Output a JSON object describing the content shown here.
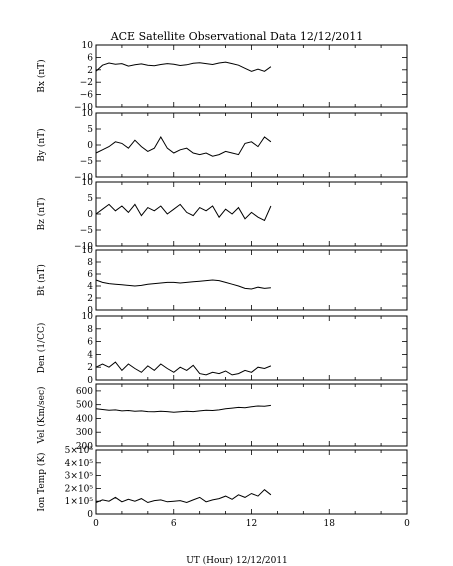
{
  "title": "ACE Satellite Observational Data   12/12/2011",
  "xlabel": "UT (Hour)  12/12/2011",
  "x_ticks": [
    "0",
    "6",
    "12",
    "18",
    "0"
  ],
  "chart_data": [
    {
      "type": "line",
      "ylabel": "Bx (nT)",
      "ylim": [
        -10,
        10
      ],
      "yticks": [
        -10,
        -6,
        -2,
        2,
        6,
        10
      ],
      "ytick_labels": [
        "−10",
        "−6",
        "−2",
        "2",
        "6",
        "10"
      ],
      "x": [
        0,
        0.5,
        1,
        1.5,
        2,
        2.5,
        3,
        3.5,
        4,
        4.5,
        5,
        5.5,
        6,
        6.5,
        7,
        7.5,
        8,
        8.5,
        9,
        9.5,
        10,
        10.5,
        11,
        11.5,
        12,
        12.5,
        13,
        13.5
      ],
      "values": [
        1.5,
        3.5,
        4.2,
        3.8,
        4.0,
        3.2,
        3.6,
        3.9,
        3.5,
        3.3,
        3.7,
        4.0,
        3.8,
        3.4,
        3.6,
        4.1,
        4.3,
        4.0,
        3.7,
        4.2,
        4.5,
        4.0,
        3.5,
        2.5,
        1.5,
        2.2,
        1.5,
        3.0
      ]
    },
    {
      "type": "line",
      "ylabel": "By (nT)",
      "ylim": [
        -10,
        10
      ],
      "yticks": [
        -10,
        -5,
        0,
        5,
        10
      ],
      "ytick_labels": [
        "−10",
        "−5",
        "0",
        "5",
        "10"
      ],
      "x": [
        0,
        0.5,
        1,
        1.5,
        2,
        2.5,
        3,
        3.5,
        4,
        4.5,
        5,
        5.5,
        6,
        6.5,
        7,
        7.5,
        8,
        8.5,
        9,
        9.5,
        10,
        10.5,
        11,
        11.5,
        12,
        12.5,
        13,
        13.5
      ],
      "values": [
        -2.5,
        -1.5,
        -0.5,
        1.0,
        0.5,
        -1.0,
        1.5,
        -0.5,
        -2.0,
        -1.0,
        2.5,
        -1.0,
        -2.5,
        -1.5,
        -1.0,
        -2.5,
        -3.0,
        -2.5,
        -3.5,
        -3.0,
        -2.0,
        -2.5,
        -3.0,
        0.5,
        1.0,
        -0.5,
        2.5,
        1.0
      ]
    },
    {
      "type": "line",
      "ylabel": "Bz (nT)",
      "ylim": [
        -10,
        10
      ],
      "yticks": [
        -10,
        -5,
        0,
        5,
        10
      ],
      "ytick_labels": [
        "−10",
        "−5",
        "0",
        "5",
        "10"
      ],
      "x": [
        0,
        0.5,
        1,
        1.5,
        2,
        2.5,
        3,
        3.5,
        4,
        4.5,
        5,
        5.5,
        6,
        6.5,
        7,
        7.5,
        8,
        8.5,
        9,
        9.5,
        10,
        10.5,
        11,
        11.5,
        12,
        12.5,
        13,
        13.5
      ],
      "values": [
        0.0,
        1.5,
        3.0,
        1.0,
        2.5,
        0.5,
        3.0,
        -0.5,
        2.0,
        1.0,
        2.5,
        0.0,
        1.5,
        3.0,
        0.5,
        -0.5,
        2.0,
        1.0,
        2.5,
        -1.0,
        1.5,
        0.0,
        2.0,
        -1.5,
        0.5,
        -1.0,
        -2.0,
        2.5
      ]
    },
    {
      "type": "line",
      "ylabel": "Bt (nT)",
      "ylim": [
        0,
        10
      ],
      "yticks": [
        0,
        2,
        4,
        6,
        8,
        10
      ],
      "ytick_labels": [
        "0",
        "2",
        "4",
        "6",
        "8",
        "10"
      ],
      "x": [
        0,
        0.5,
        1,
        1.5,
        2,
        2.5,
        3,
        3.5,
        4,
        4.5,
        5,
        5.5,
        6,
        6.5,
        7,
        7.5,
        8,
        8.5,
        9,
        9.5,
        10,
        10.5,
        11,
        11.5,
        12,
        12.5,
        13,
        13.5
      ],
      "values": [
        5.0,
        4.6,
        4.4,
        4.3,
        4.2,
        4.1,
        4.0,
        4.1,
        4.3,
        4.4,
        4.5,
        4.6,
        4.6,
        4.5,
        4.6,
        4.7,
        4.8,
        4.9,
        5.0,
        4.9,
        4.6,
        4.3,
        4.0,
        3.6,
        3.5,
        3.8,
        3.6,
        3.7
      ]
    },
    {
      "type": "line",
      "ylabel": "Den (1/CC)",
      "ylim": [
        0,
        10
      ],
      "yticks": [
        0,
        2,
        4,
        6,
        8,
        10
      ],
      "ytick_labels": [
        "0",
        "2",
        "4",
        "6",
        "8",
        "10"
      ],
      "x": [
        0,
        0.5,
        1,
        1.5,
        2,
        2.5,
        3,
        3.5,
        4,
        4.5,
        5,
        5.5,
        6,
        6.5,
        7,
        7.5,
        8,
        8.5,
        9,
        9.5,
        10,
        10.5,
        11,
        11.5,
        12,
        12.5,
        13,
        13.5
      ],
      "values": [
        2.0,
        2.5,
        2.0,
        2.8,
        1.5,
        2.5,
        1.8,
        1.2,
        2.2,
        1.5,
        2.5,
        1.8,
        1.2,
        2.0,
        1.5,
        2.3,
        1.0,
        0.8,
        1.2,
        1.0,
        1.4,
        0.8,
        1.0,
        1.5,
        1.2,
        2.0,
        1.8,
        2.2
      ]
    },
    {
      "type": "line",
      "ylabel": "Vel (Km/sec)",
      "ylim": [
        200,
        650
      ],
      "yticks": [
        200,
        300,
        400,
        500,
        600
      ],
      "ytick_labels": [
        "200",
        "300",
        "400",
        "500",
        "600"
      ],
      "x": [
        0,
        0.5,
        1,
        1.5,
        2,
        2.5,
        3,
        3.5,
        4,
        4.5,
        5,
        5.5,
        6,
        6.5,
        7,
        7.5,
        8,
        8.5,
        9,
        9.5,
        10,
        10.5,
        11,
        11.5,
        12,
        12.5,
        13,
        13.5
      ],
      "values": [
        470,
        465,
        460,
        462,
        455,
        458,
        452,
        455,
        450,
        448,
        452,
        450,
        445,
        448,
        452,
        450,
        455,
        460,
        458,
        462,
        470,
        475,
        480,
        478,
        485,
        490,
        488,
        495
      ]
    },
    {
      "type": "line",
      "ylabel": "Ion Temp (K)",
      "ylim": [
        0,
        500000
      ],
      "yticks": [
        0,
        100000,
        200000,
        300000,
        400000,
        500000
      ],
      "ytick_labels": [
        "0",
        "1×10⁵",
        "2×10⁵",
        "3×10⁵",
        "4×10⁵",
        "5×10⁵"
      ],
      "x": [
        0,
        0.5,
        1,
        1.5,
        2,
        2.5,
        3,
        3.5,
        4,
        4.5,
        5,
        5.5,
        6,
        6.5,
        7,
        7.5,
        8,
        8.5,
        9,
        9.5,
        10,
        10.5,
        11,
        11.5,
        12,
        12.5,
        13,
        13.5
      ],
      "values": [
        90000,
        110000,
        100000,
        130000,
        95000,
        115000,
        100000,
        120000,
        90000,
        105000,
        110000,
        95000,
        100000,
        105000,
        90000,
        110000,
        130000,
        95000,
        110000,
        120000,
        140000,
        115000,
        150000,
        130000,
        160000,
        140000,
        190000,
        150000
      ]
    }
  ]
}
